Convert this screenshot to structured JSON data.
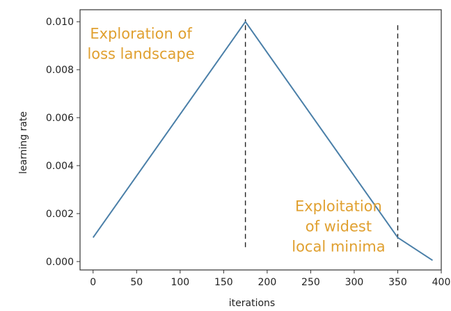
{
  "chart_data": {
    "type": "line",
    "title": "",
    "xlabel": "iterations",
    "ylabel": "learning rate",
    "xlim": [
      -15,
      400
    ],
    "ylim": [
      -0.00035,
      0.0105
    ],
    "xticks": [
      0,
      50,
      100,
      150,
      200,
      250,
      300,
      350,
      400
    ],
    "xtick_labels": [
      "0",
      "50",
      "100",
      "150",
      "200",
      "250",
      "300",
      "350",
      "400"
    ],
    "yticks": [
      0.0,
      0.002,
      0.004,
      0.006,
      0.008,
      0.01
    ],
    "ytick_labels": [
      "0.000",
      "0.002",
      "0.004",
      "0.006",
      "0.008",
      "0.010"
    ],
    "grid": false,
    "series": [
      {
        "color": "#4a7fa8",
        "x": [
          0,
          175,
          350,
          390
        ],
        "y": [
          0.001,
          0.01,
          0.001,
          5e-05
        ]
      }
    ],
    "vlines": [
      {
        "x": 175,
        "y_from": 0.0006,
        "y_to": 0.0101,
        "style": "dashed",
        "color": "#222222"
      },
      {
        "x": 350,
        "y_from": 0.0006,
        "y_to": 0.0099,
        "style": "dashed",
        "color": "#222222"
      }
    ],
    "annotations": [
      {
        "lines": [
          "Exploration of",
          "loss landscape"
        ],
        "x": 55,
        "y": 0.0093,
        "color": "#e0a030"
      },
      {
        "lines": [
          "Exploitation",
          "of widest",
          "local minima"
        ],
        "x": 282,
        "y": 0.0021,
        "color": "#e0a030"
      }
    ]
  }
}
